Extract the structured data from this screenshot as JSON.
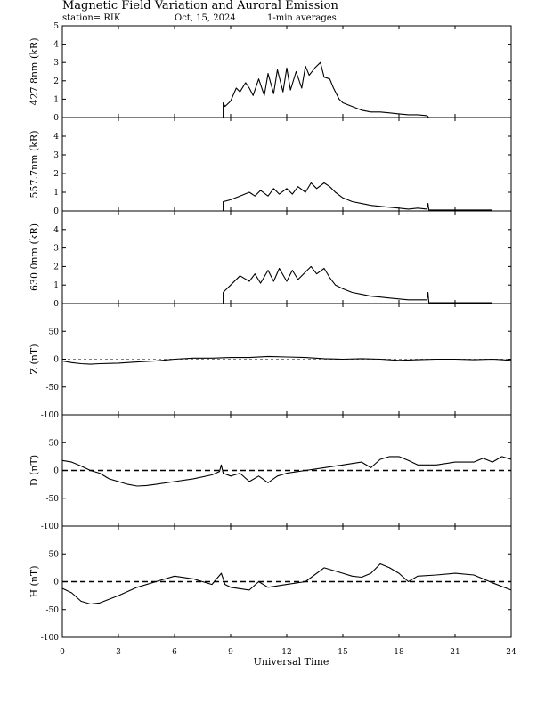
{
  "header": {
    "title": "Magnetic Field Variation and Auroral Emission",
    "station": "station= RIK",
    "date": "Oct, 15, 2024",
    "averaging": "1-min averages"
  },
  "chart_data": {
    "type": "line",
    "xlabel": "Universal Time",
    "xlim": [
      0,
      24
    ],
    "xticks": [
      0,
      3,
      6,
      9,
      12,
      15,
      18,
      21,
      24
    ],
    "xtick_labels": [
      "0",
      "3",
      "6",
      "9",
      "12",
      "15",
      "18",
      "21",
      "24"
    ],
    "panels": [
      {
        "ylabel": "427.8nm (kR)",
        "ylim": [
          0,
          5
        ],
        "yticks": [
          0,
          1,
          2,
          3,
          4,
          5
        ],
        "ytick_labels": [
          "0",
          "1",
          "2",
          "3",
          "4",
          "5"
        ],
        "zero_line": "none",
        "series": [
          {
            "x": [
              8.6,
              8.6,
              8.7,
              9.0,
              9.3,
              9.5,
              9.8,
              10.0,
              10.2,
              10.5,
              10.8,
              11.0,
              11.3,
              11.5,
              11.8,
              12.0,
              12.2,
              12.5,
              12.8,
              13.0,
              13.2,
              13.5,
              13.8,
              14.0,
              14.3,
              14.5,
              14.8,
              15.0,
              15.5,
              16.0,
              16.5,
              17.0,
              17.5,
              18.0,
              18.5,
              19.0,
              19.5,
              19.6
            ],
            "y": [
              0.0,
              0.8,
              0.6,
              0.9,
              1.6,
              1.4,
              1.9,
              1.6,
              1.2,
              2.1,
              1.2,
              2.4,
              1.3,
              2.6,
              1.4,
              2.7,
              1.5,
              2.5,
              1.6,
              2.8,
              2.3,
              2.7,
              3.0,
              2.2,
              2.1,
              1.6,
              1.0,
              0.8,
              0.6,
              0.4,
              0.3,
              0.3,
              0.25,
              0.2,
              0.15,
              0.15,
              0.1,
              0.0
            ]
          }
        ]
      },
      {
        "ylabel": "557.7nm (kR)",
        "ylim": [
          0,
          5
        ],
        "yticks": [
          0,
          1,
          2,
          3,
          4
        ],
        "ytick_labels": [
          "0",
          "1",
          "2",
          "3",
          "4"
        ],
        "zero_line": "none",
        "series": [
          {
            "x": [
              8.0,
              8.6,
              8.6,
              9.0,
              9.5,
              10.0,
              10.3,
              10.6,
              11.0,
              11.3,
              11.6,
              12.0,
              12.3,
              12.6,
              13.0,
              13.3,
              13.6,
              14.0,
              14.3,
              14.6,
              15.0,
              15.5,
              16.0,
              16.5,
              17.0,
              17.5,
              18.0,
              18.5,
              19.0,
              19.5,
              19.55,
              19.6,
              20.0,
              23.0
            ],
            "y": [
              0.0,
              0.0,
              0.5,
              0.6,
              0.8,
              1.0,
              0.8,
              1.1,
              0.8,
              1.2,
              0.9,
              1.2,
              0.9,
              1.3,
              1.0,
              1.5,
              1.2,
              1.5,
              1.3,
              1.0,
              0.7,
              0.5,
              0.4,
              0.3,
              0.25,
              0.2,
              0.15,
              0.1,
              0.15,
              0.1,
              0.4,
              0.05,
              0.05,
              0.05
            ]
          }
        ]
      },
      {
        "ylabel": "630.0nm (kR)",
        "ylim": [
          0,
          5
        ],
        "yticks": [
          0,
          1,
          2,
          3,
          4
        ],
        "ytick_labels": [
          "0",
          "1",
          "2",
          "3",
          "4"
        ],
        "zero_line": "none",
        "series": [
          {
            "x": [
              8.0,
              8.6,
              8.6,
              9.0,
              9.5,
              10.0,
              10.3,
              10.6,
              11.0,
              11.3,
              11.6,
              12.0,
              12.3,
              12.6,
              13.0,
              13.3,
              13.6,
              14.0,
              14.3,
              14.6,
              15.0,
              15.5,
              16.0,
              16.5,
              17.0,
              17.5,
              18.0,
              18.5,
              19.0,
              19.5,
              19.55,
              19.6,
              20.0,
              23.0
            ],
            "y": [
              0.0,
              0.0,
              0.6,
              1.0,
              1.5,
              1.2,
              1.6,
              1.1,
              1.8,
              1.2,
              1.9,
              1.2,
              1.8,
              1.3,
              1.7,
              2.0,
              1.6,
              1.9,
              1.4,
              1.0,
              0.8,
              0.6,
              0.5,
              0.4,
              0.35,
              0.3,
              0.25,
              0.2,
              0.2,
              0.2,
              0.6,
              0.05,
              0.05,
              0.05
            ]
          }
        ]
      },
      {
        "ylabel": "Z (nT)",
        "ylim": [
          -100,
          100
        ],
        "yticks": [
          -100,
          -50,
          0,
          50
        ],
        "ytick_labels": [
          "-100",
          "-50",
          "0",
          "50"
        ],
        "zero_line": "thin",
        "series": [
          {
            "x": [
              0,
              0.5,
              1.0,
              1.5,
              2.0,
              3.0,
              4.0,
              5.0,
              6.0,
              7.0,
              8.0,
              9.0,
              10.0,
              11.0,
              12.0,
              13.0,
              14.0,
              15.0,
              16.0,
              17.0,
              18.0,
              19.0,
              20.0,
              21.0,
              22.0,
              23.0,
              23.5,
              24.0
            ],
            "y": [
              -3,
              -6,
              -8,
              -9,
              -8,
              -7,
              -5,
              -3,
              0,
              2,
              2,
              3,
              3,
              5,
              4,
              3,
              1,
              0,
              1,
              0,
              -2,
              -1,
              0,
              0,
              -1,
              0,
              -1,
              -2
            ]
          }
        ]
      },
      {
        "ylabel": "D (nT)",
        "ylim": [
          -100,
          100
        ],
        "yticks": [
          -100,
          -50,
          0,
          50
        ],
        "ytick_labels": [
          "-100",
          "-50",
          "0",
          "50"
        ],
        "zero_line": "dashed",
        "series": [
          {
            "x": [
              0,
              0.5,
              1.0,
              1.5,
              2.0,
              2.5,
              3.0,
              3.5,
              4.0,
              4.5,
              5.0,
              6.0,
              7.0,
              8.0,
              8.4,
              8.5,
              8.6,
              9.0,
              9.5,
              10.0,
              10.5,
              11.0,
              11.5,
              12.0,
              13.0,
              14.0,
              15.0,
              16.0,
              16.5,
              17.0,
              17.5,
              18.0,
              18.5,
              19.0,
              20.0,
              21.0,
              22.0,
              22.5,
              23.0,
              23.5,
              24.0
            ],
            "y": [
              18,
              15,
              8,
              0,
              -5,
              -15,
              -20,
              -25,
              -28,
              -27,
              -25,
              -20,
              -15,
              -8,
              -2,
              10,
              -5,
              -10,
              -5,
              -20,
              -10,
              -22,
              -10,
              -5,
              0,
              5,
              10,
              15,
              5,
              20,
              25,
              25,
              18,
              10,
              10,
              15,
              15,
              22,
              15,
              25,
              20
            ]
          }
        ]
      },
      {
        "ylabel": "H (nT)",
        "ylim": [
          -100,
          100
        ],
        "yticks": [
          -100,
          -50,
          0,
          50
        ],
        "ytick_labels": [
          "-100",
          "-50",
          "0",
          "50"
        ],
        "zero_line": "dashed",
        "series": [
          {
            "x": [
              0,
              0.5,
              1.0,
              1.5,
              2.0,
              3.0,
              4.0,
              5.0,
              6.0,
              7.0,
              8.0,
              8.5,
              8.7,
              9.0,
              10.0,
              10.5,
              11.0,
              12.0,
              13.0,
              14.0,
              15.0,
              15.5,
              16.0,
              16.5,
              17.0,
              17.5,
              18.0,
              18.5,
              19.0,
              20.0,
              21.0,
              22.0,
              22.5,
              23.0,
              24.0
            ],
            "y": [
              -12,
              -20,
              -35,
              -40,
              -38,
              -25,
              -10,
              0,
              10,
              5,
              -5,
              15,
              -5,
              -10,
              -15,
              0,
              -10,
              -5,
              0,
              25,
              15,
              10,
              8,
              15,
              32,
              25,
              15,
              0,
              10,
              12,
              15,
              12,
              5,
              -2,
              -15
            ]
          }
        ]
      }
    ]
  }
}
